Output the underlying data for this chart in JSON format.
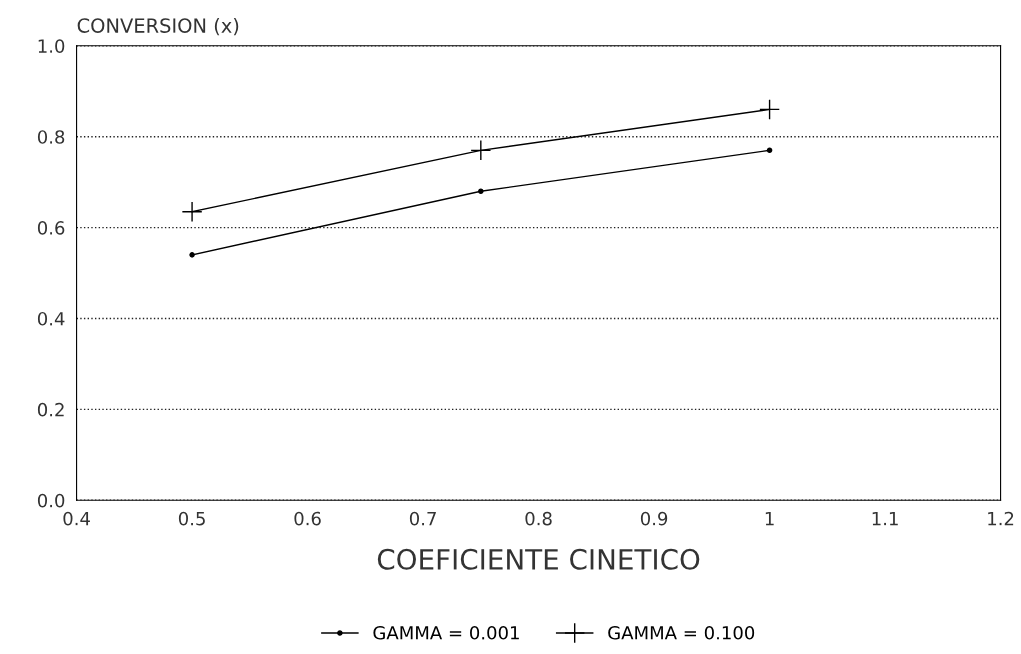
{
  "chart_data": {
    "type": "line",
    "ylabel": "CONVERSION (x)",
    "xlabel": "COEFICIENTE CINETICO",
    "x": [
      0.5,
      0.75,
      1
    ],
    "series": [
      {
        "name": "GAMMA = 0.001",
        "color": "#000000",
        "marker": "circle",
        "values": [
          0.54,
          0.68,
          0.77
        ]
      },
      {
        "name": "GAMMA = 0.100",
        "color": "#000000",
        "marker": "cross",
        "values": [
          0.635,
          0.77,
          0.86
        ]
      }
    ],
    "xlim": [
      0.4,
      1.2
    ],
    "xticks": [
      0.4,
      0.5,
      0.6,
      0.7,
      0.8,
      0.9,
      1,
      1.1,
      1.2
    ],
    "ylim": [
      0,
      1
    ],
    "yticks": [
      {
        "value": 0,
        "label": "0.0"
      },
      0.2,
      0.4,
      0.6,
      0.8,
      {
        "value": 1,
        "label": "1.0"
      }
    ],
    "grid": "y",
    "legend": "bottom",
    "line_style": "solid"
  }
}
